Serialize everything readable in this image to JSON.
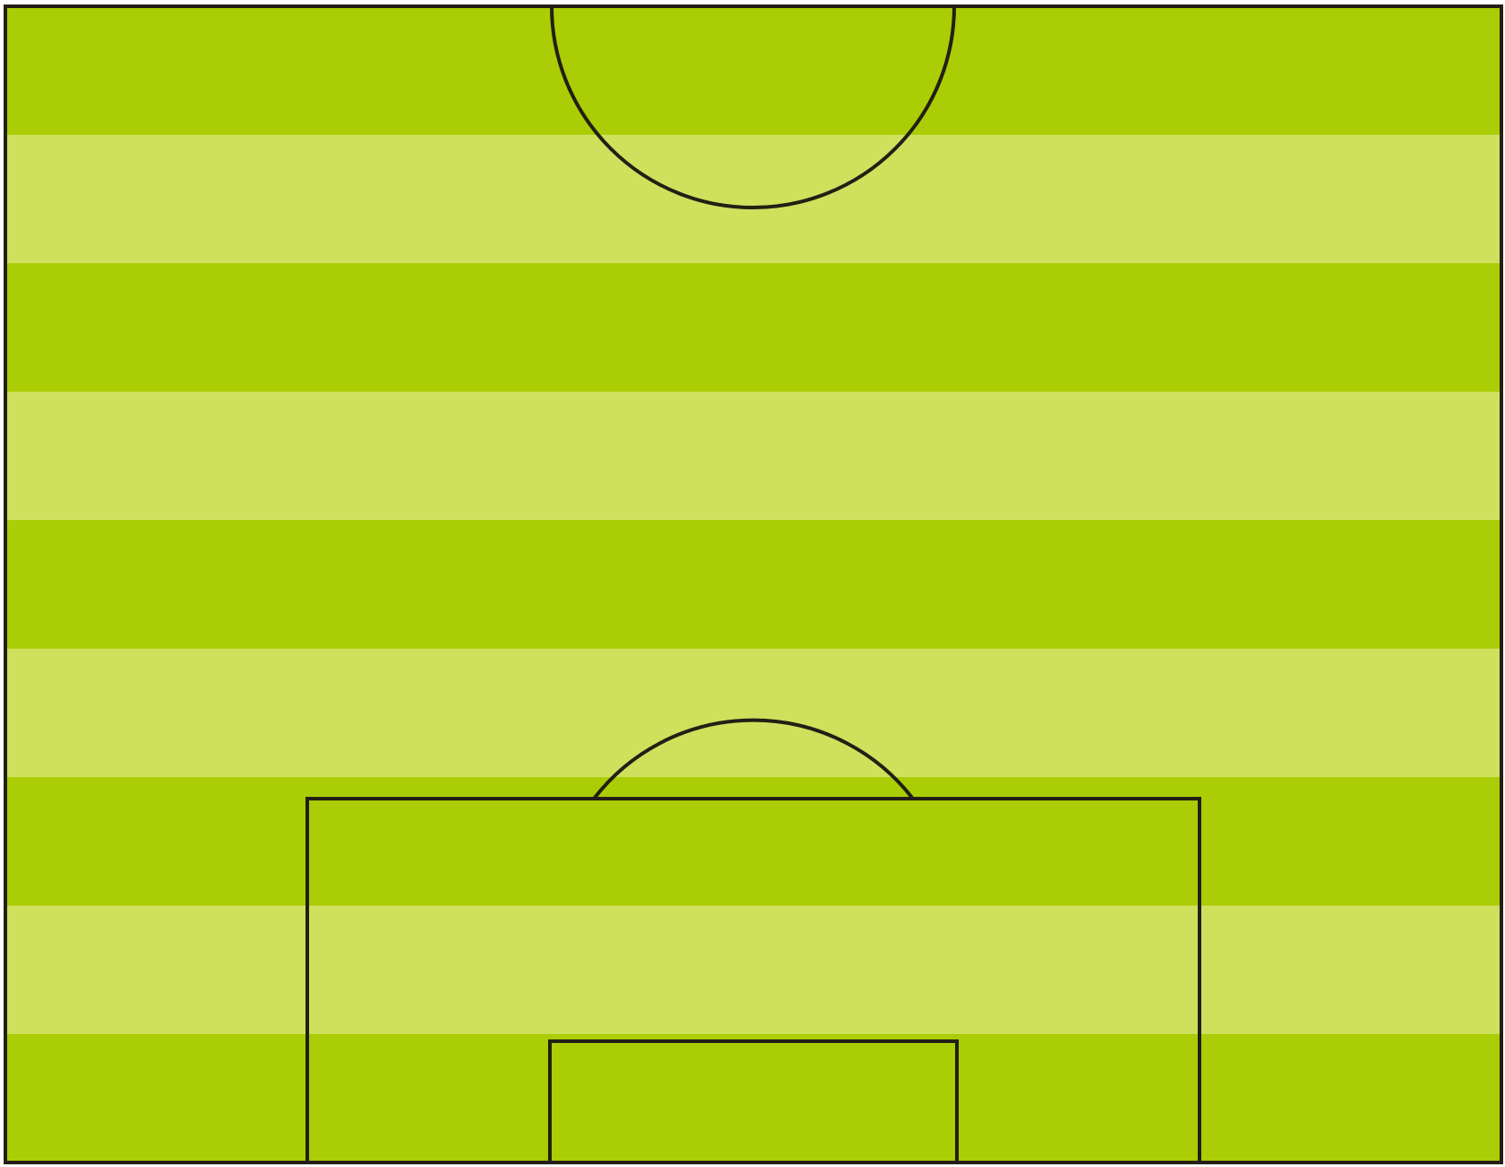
{
  "pitch": {
    "view": "half-pitch",
    "stripe_count": 9,
    "stripe_colors": [
      "#aacd05",
      "#cfe05d"
    ],
    "line_color": "#231f14",
    "markings": [
      "outer-boundary",
      "center-circle-arc",
      "penalty-area",
      "goal-area",
      "penalty-arc"
    ]
  }
}
